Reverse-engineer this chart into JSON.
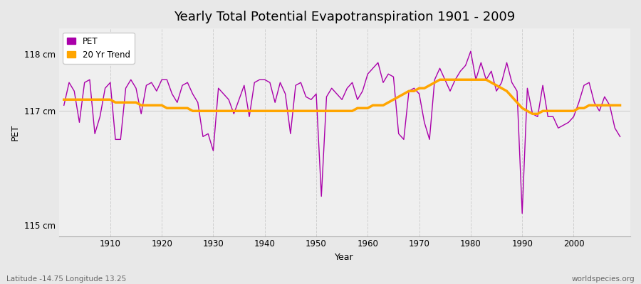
{
  "title": "Yearly Total Potential Evapotranspiration 1901 - 2009",
  "xlabel": "Year",
  "ylabel": "PET",
  "years": [
    1901,
    1902,
    1903,
    1904,
    1905,
    1906,
    1907,
    1908,
    1909,
    1910,
    1911,
    1912,
    1913,
    1914,
    1915,
    1916,
    1917,
    1918,
    1919,
    1920,
    1921,
    1922,
    1923,
    1924,
    1925,
    1926,
    1927,
    1928,
    1929,
    1930,
    1931,
    1932,
    1933,
    1934,
    1935,
    1936,
    1937,
    1938,
    1939,
    1940,
    1941,
    1942,
    1943,
    1944,
    1945,
    1946,
    1947,
    1948,
    1949,
    1950,
    1951,
    1952,
    1953,
    1954,
    1955,
    1956,
    1957,
    1958,
    1959,
    1960,
    1961,
    1962,
    1963,
    1964,
    1965,
    1966,
    1967,
    1968,
    1969,
    1970,
    1971,
    1972,
    1973,
    1974,
    1975,
    1976,
    1977,
    1978,
    1979,
    1980,
    1981,
    1982,
    1983,
    1984,
    1985,
    1986,
    1987,
    1988,
    1989,
    1990,
    1991,
    1992,
    1993,
    1994,
    1995,
    1996,
    1997,
    1998,
    1999,
    2000,
    2001,
    2002,
    2003,
    2004,
    2005,
    2006,
    2007,
    2008,
    2009
  ],
  "pet": [
    117.1,
    117.5,
    117.35,
    116.8,
    117.5,
    117.55,
    116.6,
    116.9,
    117.4,
    117.5,
    116.5,
    116.5,
    117.4,
    117.55,
    117.4,
    116.95,
    117.45,
    117.5,
    117.35,
    117.55,
    117.55,
    117.3,
    117.15,
    117.45,
    117.5,
    117.3,
    117.15,
    116.55,
    116.6,
    116.3,
    117.4,
    117.3,
    117.2,
    116.95,
    117.2,
    117.45,
    116.9,
    117.5,
    117.55,
    117.55,
    117.5,
    117.15,
    117.5,
    117.3,
    116.6,
    117.45,
    117.5,
    117.25,
    117.2,
    117.3,
    115.5,
    117.25,
    117.4,
    117.3,
    117.2,
    117.4,
    117.5,
    117.2,
    117.35,
    117.65,
    117.75,
    117.85,
    117.5,
    117.65,
    117.6,
    116.6,
    116.5,
    117.35,
    117.4,
    117.3,
    116.8,
    116.5,
    117.55,
    117.75,
    117.55,
    117.35,
    117.55,
    117.7,
    117.8,
    118.05,
    117.55,
    117.85,
    117.55,
    117.7,
    117.35,
    117.5,
    117.85,
    117.5,
    117.35,
    115.2,
    117.4,
    116.95,
    116.9,
    117.45,
    116.9,
    116.9,
    116.7,
    116.75,
    116.8,
    116.9,
    117.15,
    117.45,
    117.5,
    117.15,
    117.0,
    117.25,
    117.1,
    116.7,
    116.55
  ],
  "trend": [
    117.2,
    117.2,
    117.2,
    117.2,
    117.2,
    117.2,
    117.2,
    117.2,
    117.2,
    117.2,
    117.15,
    117.15,
    117.15,
    117.15,
    117.15,
    117.1,
    117.1,
    117.1,
    117.1,
    117.1,
    117.05,
    117.05,
    117.05,
    117.05,
    117.05,
    117.0,
    117.0,
    117.0,
    117.0,
    117.0,
    117.0,
    117.0,
    117.0,
    117.0,
    117.0,
    117.0,
    117.0,
    117.0,
    117.0,
    117.0,
    117.0,
    117.0,
    117.0,
    117.0,
    117.0,
    117.0,
    117.0,
    117.0,
    117.0,
    117.0,
    117.0,
    117.0,
    117.0,
    117.0,
    117.0,
    117.0,
    117.0,
    117.05,
    117.05,
    117.05,
    117.1,
    117.1,
    117.1,
    117.15,
    117.2,
    117.25,
    117.3,
    117.35,
    117.35,
    117.4,
    117.4,
    117.45,
    117.5,
    117.55,
    117.55,
    117.55,
    117.55,
    117.55,
    117.55,
    117.55,
    117.55,
    117.55,
    117.55,
    117.5,
    117.45,
    117.4,
    117.35,
    117.25,
    117.15,
    117.05,
    117.0,
    116.95,
    116.95,
    117.0,
    117.0,
    117.0,
    117.0,
    117.0,
    117.0,
    117.0,
    117.05,
    117.05,
    117.1,
    117.1,
    117.1,
    117.1,
    117.1,
    117.1,
    117.1
  ],
  "pet_color": "#AA00AA",
  "trend_color": "#FFA500",
  "bg_color": "#E8E8E8",
  "plot_bg_color": "#EFEFEF",
  "grid_color": "#D0D0D0",
  "ylim": [
    114.8,
    118.45
  ],
  "yticks": [
    115.0,
    117.0,
    118.0
  ],
  "ytick_labels": [
    "115 cm",
    "117 cm",
    "118 cm"
  ],
  "xticks": [
    1910,
    1920,
    1930,
    1940,
    1950,
    1960,
    1970,
    1980,
    1990,
    2000
  ],
  "title_fontsize": 13,
  "label_fontsize": 9,
  "tick_fontsize": 8.5,
  "footer_left": "Latitude -14.75 Longitude 13.25",
  "footer_right": "worldspecies.org"
}
